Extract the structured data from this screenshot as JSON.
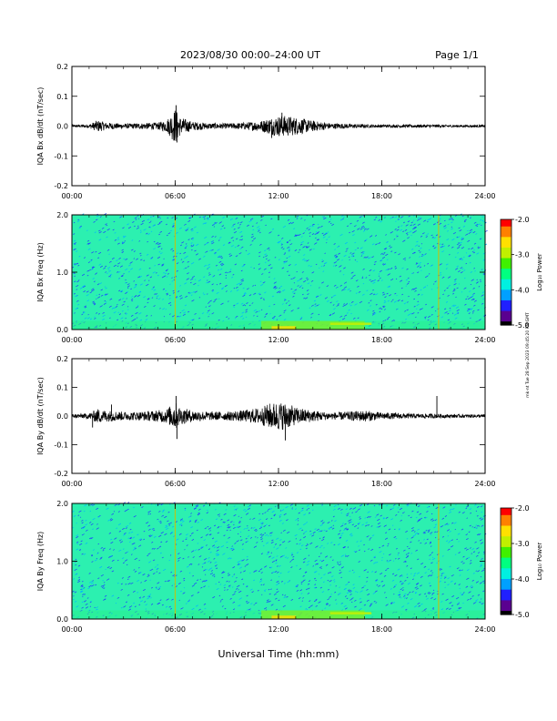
{
  "header": {
    "title": "2023/08/30  00:00–24:00 UT",
    "page_label": "Page 1/1"
  },
  "footer": {
    "xlabel": "Universal Time (hh:mm)"
  },
  "side_note": "mk-nt Tue 28 Sep 2023 09:45:20 PM GMT",
  "colors": {
    "trace": "#000000",
    "spectrogram_background": "#2cf0b0",
    "colormap": [
      "#000000",
      "#5a0090",
      "#2020ff",
      "#00a0ff",
      "#00f0e0",
      "#00ff80",
      "#40f000",
      "#c0f000",
      "#ffe000",
      "#ff8000",
      "#ff0000"
    ]
  },
  "chart_data": [
    {
      "type": "line",
      "panel": "Bx waveform",
      "ylabel": "IQA Bx dB/dt (nT/sec)",
      "xlim": [
        0,
        24
      ],
      "ylim": [
        -0.2,
        0.2
      ],
      "x_ticks": [
        "00:00",
        "06:00",
        "12:00",
        "18:00",
        "24:00"
      ],
      "y_ticks": [
        "0.2",
        "0.1",
        "0.0",
        "-0.1",
        "-0.2"
      ],
      "envelope": {
        "hours": [
          0,
          1,
          1.5,
          2,
          3,
          4,
          5,
          5.5,
          6,
          6.3,
          7,
          8,
          9,
          10,
          11,
          11.5,
          12,
          12.5,
          13,
          14,
          15,
          16,
          17,
          18,
          19,
          20,
          21,
          22,
          23,
          24
        ],
        "amplitude": [
          0.004,
          0.006,
          0.02,
          0.012,
          0.008,
          0.01,
          0.012,
          0.02,
          0.06,
          0.03,
          0.015,
          0.01,
          0.009,
          0.012,
          0.018,
          0.028,
          0.035,
          0.035,
          0.03,
          0.018,
          0.01,
          0.008,
          0.006,
          0.005,
          0.005,
          0.005,
          0.005,
          0.004,
          0.004,
          0.004
        ]
      },
      "spikes": [
        [
          6.05,
          0.07
        ],
        [
          6.1,
          -0.055
        ],
        [
          12.2,
          0.045
        ],
        [
          11.6,
          -0.04
        ]
      ]
    },
    {
      "type": "heatmap",
      "panel": "Bx spectrogram",
      "ylabel": "IQA Bx Freq (Hz)",
      "xlim": [
        0,
        24
      ],
      "ylim": [
        0,
        2.0
      ],
      "x_ticks": [
        "00:00",
        "06:00",
        "12:00",
        "18:00",
        "24:00"
      ],
      "y_ticks": [
        "2.0",
        "1.0",
        "0.0"
      ],
      "colorbar": {
        "label": "Log₁₀ Power",
        "range": [
          -5.0,
          -2.0
        ],
        "ticks": [
          "-2.0",
          "-3.0",
          "-4.0",
          "-5.0"
        ]
      },
      "vertical_lines_hours": [
        6.0,
        21.3
      ],
      "low_freq_enhancement": {
        "hours": [
          11.0,
          17.0
        ],
        "freq_max": 0.15
      }
    },
    {
      "type": "line",
      "panel": "By waveform",
      "ylabel": "IQA By dB/dt (nT/sec)",
      "xlim": [
        0,
        24
      ],
      "ylim": [
        -0.2,
        0.2
      ],
      "x_ticks": [
        "00:00",
        "06:00",
        "12:00",
        "18:00",
        "24:00"
      ],
      "y_ticks": [
        "0.2",
        "0.1",
        "0.0",
        "-0.1",
        "-0.2"
      ],
      "envelope": {
        "hours": [
          0,
          1,
          1.5,
          2,
          3,
          4,
          5,
          5.5,
          6,
          6.3,
          7,
          8,
          9,
          10,
          11,
          11.5,
          12,
          12.5,
          13,
          14,
          15,
          16,
          17,
          18,
          19,
          20,
          21,
          22,
          23,
          24
        ],
        "amplitude": [
          0.006,
          0.01,
          0.025,
          0.02,
          0.015,
          0.015,
          0.02,
          0.025,
          0.05,
          0.03,
          0.02,
          0.015,
          0.015,
          0.02,
          0.03,
          0.045,
          0.05,
          0.045,
          0.03,
          0.02,
          0.012,
          0.015,
          0.02,
          0.012,
          0.01,
          0.008,
          0.008,
          0.006,
          0.006,
          0.006
        ]
      },
      "spikes": [
        [
          6.05,
          0.07
        ],
        [
          6.1,
          -0.08
        ],
        [
          12.4,
          -0.085
        ],
        [
          21.2,
          0.07
        ],
        [
          1.2,
          -0.04
        ],
        [
          2.3,
          0.04
        ]
      ]
    },
    {
      "type": "heatmap",
      "panel": "By spectrogram",
      "ylabel": "IQA By Freq (Hz)",
      "xlim": [
        0,
        24
      ],
      "ylim": [
        0,
        2.0
      ],
      "x_ticks": [
        "00:00",
        "06:00",
        "12:00",
        "18:00",
        "24:00"
      ],
      "y_ticks": [
        "2.0",
        "1.0",
        "0.0"
      ],
      "colorbar": {
        "label": "Log₁₀ Power",
        "range": [
          -5.0,
          -2.0
        ],
        "ticks": [
          "-2.0",
          "-3.0",
          "-4.0",
          "-5.0"
        ]
      },
      "vertical_lines_hours": [
        6.0,
        21.3
      ],
      "low_freq_enhancement": {
        "hours": [
          11.0,
          17.0
        ],
        "freq_max": 0.15
      }
    }
  ]
}
